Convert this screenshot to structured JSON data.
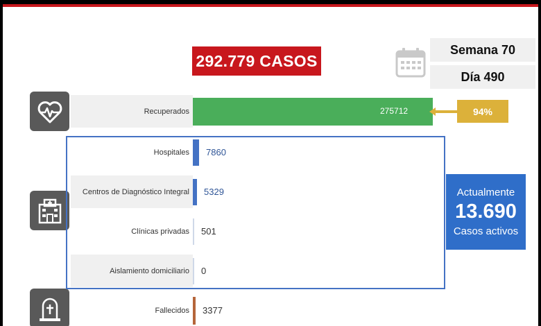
{
  "header": {
    "total_cases": "292.779 CASOS"
  },
  "calendar": {
    "icon": "calendar-icon",
    "week": "Semana 70",
    "day": "Día 490"
  },
  "recovered_percent": "94%",
  "active": {
    "line1": "Actualmente",
    "count": "13.690",
    "line2": "Casos activos"
  },
  "categories": {
    "recovered_icon": "heart-pulse-icon",
    "hospital_icon": "hospital-icon",
    "deceased_icon": "tombstone-icon"
  },
  "colors": {
    "red": "#c8171d",
    "green": "#4aae5a",
    "blue": "#4472c4",
    "gold": "#dcb13a",
    "brown": "#b5653a"
  },
  "chart_data": {
    "type": "bar",
    "orientation": "horizontal",
    "categories": [
      "Recuperados",
      "Hospitales",
      "Centros de Diagnóstico Integral",
      "Clínicas privadas",
      "Aislamiento domiciliario",
      "Fallecidos"
    ],
    "values": [
      275712,
      7860,
      5329,
      501,
      0,
      3377
    ],
    "value_labels": [
      "275712",
      "7860",
      "5329",
      "501",
      "0",
      "3377"
    ],
    "bar_colors": [
      "#4aae5a",
      "#4472c4",
      "#4472c4",
      "#4472c4",
      "#4472c4",
      "#b5653a"
    ]
  }
}
